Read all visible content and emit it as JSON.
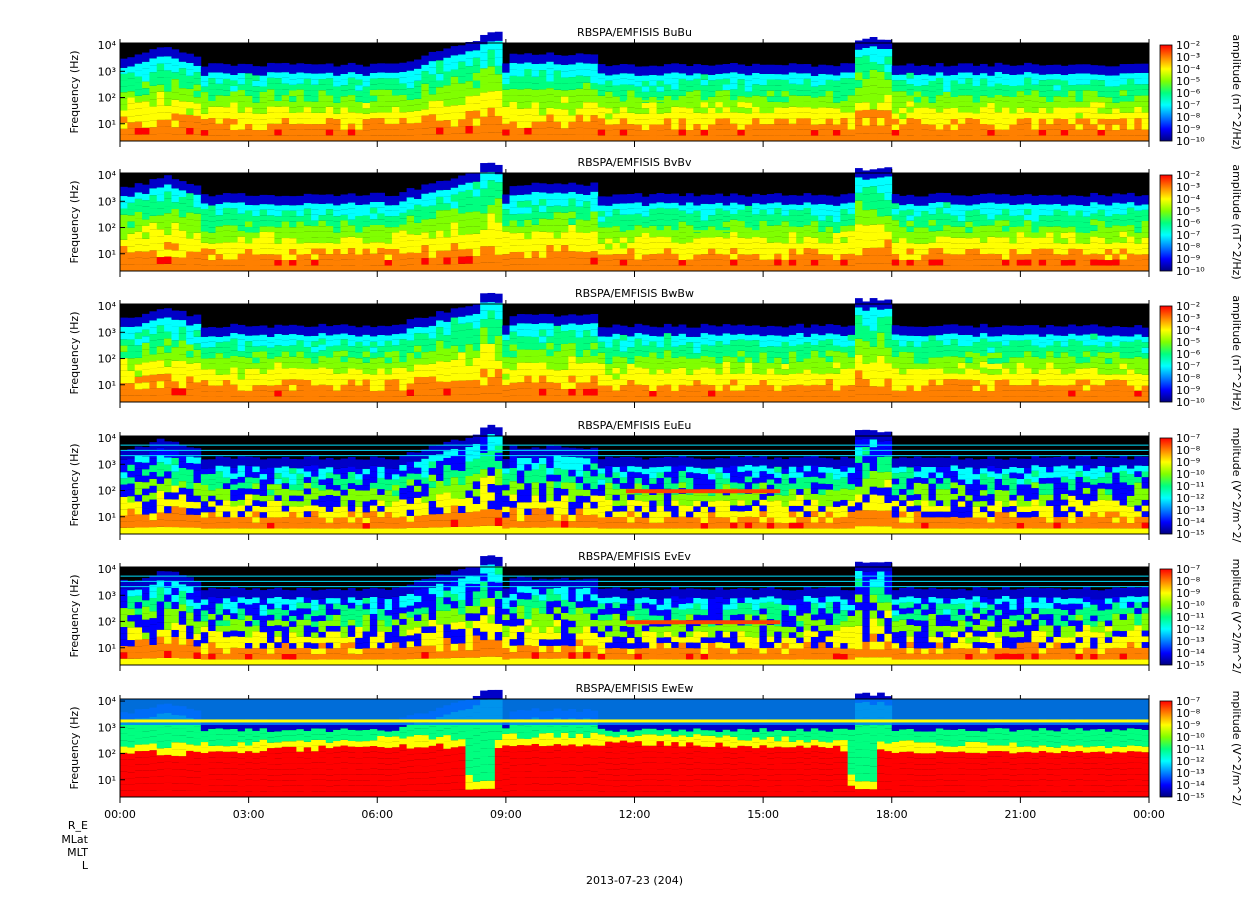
{
  "chart_data": {
    "type": "heatmap",
    "x_label_bottom": "2013-07-23 (204)",
    "x_tick_labels": [
      "00:00",
      "03:00",
      "06:00",
      "09:00",
      "12:00",
      "15:00",
      "18:00",
      "21:00",
      "00:00"
    ],
    "y_tick_labels": [
      "10¹",
      "10²",
      "10³",
      "10⁴"
    ],
    "ephemeris_rows": [
      "R_E",
      "MLat",
      "MLT",
      "L"
    ],
    "panels": [
      {
        "title": "RBSPA/EMFISIS  BuBu",
        "ylabel": "Frequency (Hz)",
        "zlabel": "amplitude (nT^2/Hz)",
        "colorbar_ticks": [
          "10⁻²",
          "10⁻³",
          "10⁻⁴",
          "10⁻⁵",
          "10⁻⁶",
          "10⁻⁷",
          "10⁻⁸",
          "10⁻⁹",
          "10⁻¹⁰"
        ],
        "kind": "B"
      },
      {
        "title": "RBSPA/EMFISIS  BvBv",
        "ylabel": "Frequency (Hz)",
        "zlabel": "amplitude (nT^2/Hz)",
        "colorbar_ticks": [
          "10⁻²",
          "10⁻³",
          "10⁻⁴",
          "10⁻⁵",
          "10⁻⁶",
          "10⁻⁷",
          "10⁻⁸",
          "10⁻⁹",
          "10⁻¹⁰"
        ],
        "kind": "B"
      },
      {
        "title": "RBSPA/EMFISIS  BwBw",
        "ylabel": "Frequency (Hz)",
        "zlabel": "amplitude (nT^2/Hz)",
        "colorbar_ticks": [
          "10⁻²",
          "10⁻³",
          "10⁻⁴",
          "10⁻⁵",
          "10⁻⁶",
          "10⁻⁷",
          "10⁻⁸",
          "10⁻⁹",
          "10⁻¹⁰"
        ],
        "kind": "B"
      },
      {
        "title": "RBSPA/EMFISIS  EuEu",
        "ylabel": "Frequency (Hz)",
        "zlabel": "mplitude (V^2/m^2/",
        "colorbar_ticks": [
          "10⁻⁷",
          "10⁻⁸",
          "10⁻⁹",
          "10⁻¹⁰",
          "10⁻¹¹",
          "10⁻¹²",
          "10⁻¹³",
          "10⁻¹⁴",
          "10⁻¹⁵"
        ],
        "kind": "E"
      },
      {
        "title": "RBSPA/EMFISIS  EvEv",
        "ylabel": "Frequency (Hz)",
        "zlabel": "mplitude (V^2/m^2/",
        "colorbar_ticks": [
          "10⁻⁷",
          "10⁻⁸",
          "10⁻⁹",
          "10⁻¹⁰",
          "10⁻¹¹",
          "10⁻¹²",
          "10⁻¹³",
          "10⁻¹⁴",
          "10⁻¹⁵"
        ],
        "kind": "E"
      },
      {
        "title": "RBSPA/EMFISIS  EwEw",
        "ylabel": "Frequency (Hz)",
        "zlabel": "mplitude (V^2/m^2/",
        "colorbar_ticks": [
          "10⁻⁷",
          "10⁻⁸",
          "10⁻⁹",
          "10⁻¹⁰",
          "10⁻¹¹",
          "10⁻¹²",
          "10⁻¹³",
          "10⁻¹⁴",
          "10⁻¹⁵"
        ],
        "kind": "EW"
      }
    ],
    "colormap": [
      "#000080",
      "#0000ff",
      "#0080ff",
      "#00ffff",
      "#00ff80",
      "#80ff00",
      "#ffff00",
      "#ff8000",
      "#ff0000"
    ],
    "background_color": "#000000"
  }
}
